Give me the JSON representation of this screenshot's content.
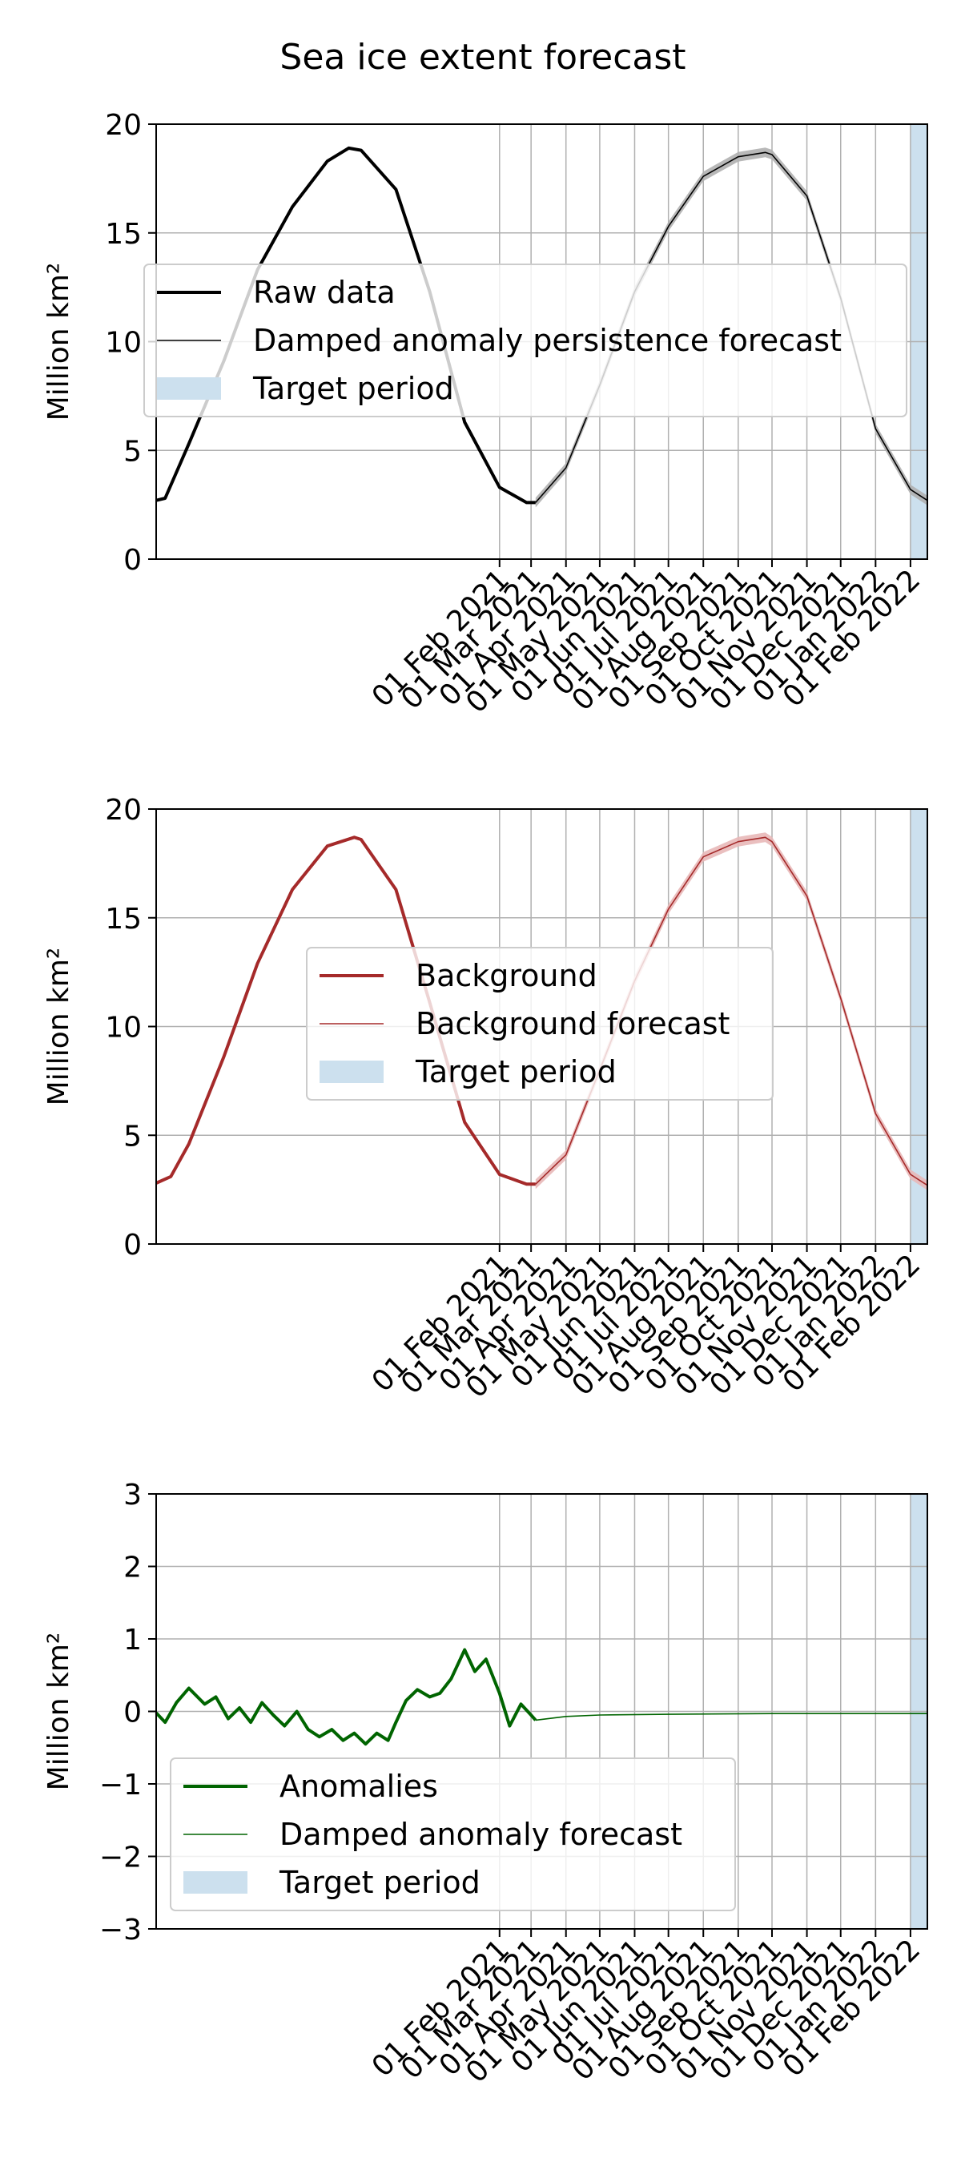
{
  "figure": {
    "title": "Sea ice extent forecast"
  },
  "colors": {
    "raw": "#000000",
    "background": "#a52a2a",
    "anomaly": "#006400",
    "target": "#cce0ee",
    "grid": "#b0b0b0",
    "band_gray": "#b0b0b0",
    "band_red": "#e8b8b8"
  },
  "chart_data": [
    {
      "type": "line",
      "ylabel": "Million km²",
      "ylim": [
        0,
        20
      ],
      "yticks": [
        0,
        5,
        10,
        15,
        20
      ],
      "xlim": [
        "2020-04-02",
        "2022-02-16"
      ],
      "xticks": [
        "2021-02-01",
        "2021-03-01",
        "2021-04-01",
        "2021-05-01",
        "2021-06-01",
        "2021-07-01",
        "2021-08-01",
        "2021-09-01",
        "2021-10-01",
        "2021-11-01",
        "2021-12-01",
        "2022-01-01",
        "2022-02-01"
      ],
      "xtick_labels": [
        "01 Feb 2021",
        "01 Mar 2021",
        "01 Apr 2021",
        "01 May 2021",
        "01 Jun 2021",
        "01 Jul 2021",
        "01 Aug 2021",
        "01 Sep 2021",
        "01 Oct 2021",
        "01 Nov 2021",
        "01 Dec 2021",
        "01 Jan 2022",
        "01 Feb 2022"
      ],
      "grid": "vertical grid from Feb 2021 onward, horizontal grid on all y ticks",
      "legend": "upper left",
      "target_period": [
        "2022-02-01",
        "2022-02-16"
      ],
      "series": [
        {
          "name": "Raw data",
          "role": "observed",
          "x": [
            "2020-04-02",
            "2020-04-10",
            "2020-05-01",
            "2020-06-01",
            "2020-07-01",
            "2020-08-01",
            "2020-09-01",
            "2020-09-20",
            "2020-10-01",
            "2020-11-01",
            "2020-12-01",
            "2021-01-01",
            "2021-02-01",
            "2021-02-25",
            "2021-03-05"
          ],
          "y": [
            2.7,
            2.8,
            5.3,
            9.1,
            13.3,
            16.2,
            18.3,
            18.9,
            18.8,
            17.0,
            12.3,
            6.3,
            3.3,
            2.6,
            2.6
          ]
        },
        {
          "name": "Damped anomaly persistence forecast",
          "role": "forecast",
          "x": [
            "2021-03-05",
            "2021-04-01",
            "2021-05-01",
            "2021-06-01",
            "2021-07-01",
            "2021-08-01",
            "2021-09-01",
            "2021-09-25",
            "2021-10-01",
            "2021-11-01",
            "2021-12-01",
            "2022-01-01",
            "2022-02-01",
            "2022-02-16"
          ],
          "y": [
            2.6,
            4.2,
            8.0,
            12.3,
            15.3,
            17.6,
            18.5,
            18.7,
            18.6,
            16.7,
            12.0,
            6.0,
            3.2,
            2.7
          ]
        }
      ]
    },
    {
      "type": "line",
      "ylabel": "Million km²",
      "ylim": [
        0,
        20
      ],
      "yticks": [
        0,
        5,
        10,
        15,
        20
      ],
      "xlim": [
        "2020-04-02",
        "2022-02-16"
      ],
      "xticks": [
        "2021-02-01",
        "2021-03-01",
        "2021-04-01",
        "2021-05-01",
        "2021-06-01",
        "2021-07-01",
        "2021-08-01",
        "2021-09-01",
        "2021-10-01",
        "2021-11-01",
        "2021-12-01",
        "2022-01-01",
        "2022-02-01"
      ],
      "xtick_labels": [
        "01 Feb 2021",
        "01 Mar 2021",
        "01 Apr 2021",
        "01 May 2021",
        "01 Jun 2021",
        "01 Jul 2021",
        "01 Aug 2021",
        "01 Sep 2021",
        "01 Oct 2021",
        "01 Nov 2021",
        "01 Dec 2021",
        "01 Jan 2022",
        "01 Feb 2022"
      ],
      "grid": "vertical grid from Feb 2021 onward, horizontal grid on all y ticks",
      "legend": "center",
      "target_period": [
        "2022-02-01",
        "2022-02-16"
      ],
      "series": [
        {
          "name": "Background",
          "role": "observed",
          "x": [
            "2020-04-02",
            "2020-04-15",
            "2020-05-01",
            "2020-06-01",
            "2020-07-01",
            "2020-08-01",
            "2020-09-01",
            "2020-09-25",
            "2020-10-01",
            "2020-11-01",
            "2020-12-01",
            "2021-01-01",
            "2021-02-01",
            "2021-02-25",
            "2021-03-05"
          ],
          "y": [
            2.8,
            3.1,
            4.6,
            8.6,
            12.9,
            16.3,
            18.3,
            18.7,
            18.6,
            16.3,
            11.1,
            5.6,
            3.2,
            2.75,
            2.75
          ]
        },
        {
          "name": "Background forecast",
          "role": "forecast",
          "x": [
            "2021-03-05",
            "2021-04-01",
            "2021-05-01",
            "2021-06-01",
            "2021-07-01",
            "2021-08-01",
            "2021-09-01",
            "2021-09-25",
            "2021-10-01",
            "2021-11-01",
            "2021-12-01",
            "2022-01-01",
            "2022-02-01",
            "2022-02-16"
          ],
          "y": [
            2.75,
            4.1,
            8.0,
            12.1,
            15.4,
            17.8,
            18.5,
            18.7,
            18.5,
            16.0,
            11.3,
            6.0,
            3.2,
            2.7
          ]
        }
      ]
    },
    {
      "type": "line",
      "ylabel": "Million km²",
      "ylim": [
        -3,
        3
      ],
      "yticks": [
        -3,
        -2,
        -1,
        0,
        1,
        2,
        3
      ],
      "ytick_labels": [
        "−3",
        "−2",
        "−1",
        "0",
        "1",
        "2",
        "3"
      ],
      "xlim": [
        "2020-04-02",
        "2022-02-16"
      ],
      "xticks": [
        "2021-02-01",
        "2021-03-01",
        "2021-04-01",
        "2021-05-01",
        "2021-06-01",
        "2021-07-01",
        "2021-08-01",
        "2021-09-01",
        "2021-10-01",
        "2021-11-01",
        "2021-12-01",
        "2022-01-01",
        "2022-02-01"
      ],
      "xtick_labels": [
        "01 Feb 2021",
        "01 Mar 2021",
        "01 Apr 2021",
        "01 May 2021",
        "01 Jun 2021",
        "01 Jul 2021",
        "01 Aug 2021",
        "01 Sep 2021",
        "01 Oct 2021",
        "01 Nov 2021",
        "01 Dec 2021",
        "01 Jan 2022",
        "01 Feb 2022"
      ],
      "grid": "vertical grid from Feb 2021 onward, horizontal grid on all y ticks",
      "legend": "lower left",
      "target_period": [
        "2022-02-01",
        "2022-02-16"
      ],
      "series": [
        {
          "name": "Anomalies",
          "role": "observed",
          "x": [
            "2020-04-02",
            "2020-04-10",
            "2020-04-20",
            "2020-05-01",
            "2020-05-15",
            "2020-05-25",
            "2020-06-05",
            "2020-06-15",
            "2020-06-25",
            "2020-07-05",
            "2020-07-15",
            "2020-07-25",
            "2020-08-05",
            "2020-08-15",
            "2020-08-25",
            "2020-09-05",
            "2020-09-15",
            "2020-09-25",
            "2020-10-05",
            "2020-10-15",
            "2020-10-25",
            "2020-11-01",
            "2020-11-10",
            "2020-11-20",
            "2020-12-01",
            "2020-12-10",
            "2020-12-20",
            "2021-01-01",
            "2021-01-10",
            "2021-01-20",
            "2021-02-01",
            "2021-02-10",
            "2021-02-20",
            "2021-03-01",
            "2021-03-05"
          ],
          "y": [
            -0.02,
            -0.15,
            0.12,
            0.32,
            0.1,
            0.2,
            -0.1,
            0.05,
            -0.15,
            0.12,
            -0.05,
            -0.2,
            0.0,
            -0.25,
            -0.35,
            -0.25,
            -0.4,
            -0.3,
            -0.45,
            -0.3,
            -0.4,
            -0.15,
            0.15,
            0.3,
            0.2,
            0.25,
            0.45,
            0.85,
            0.55,
            0.72,
            0.25,
            -0.2,
            0.1,
            -0.05,
            -0.12
          ]
        },
        {
          "name": "Damped anomaly forecast",
          "role": "forecast",
          "x": [
            "2021-03-05",
            "2021-04-01",
            "2021-05-01",
            "2021-07-01",
            "2021-10-01",
            "2022-01-01",
            "2022-02-16"
          ],
          "y": [
            -0.12,
            -0.07,
            -0.05,
            -0.04,
            -0.03,
            -0.03,
            -0.03
          ]
        }
      ]
    }
  ]
}
